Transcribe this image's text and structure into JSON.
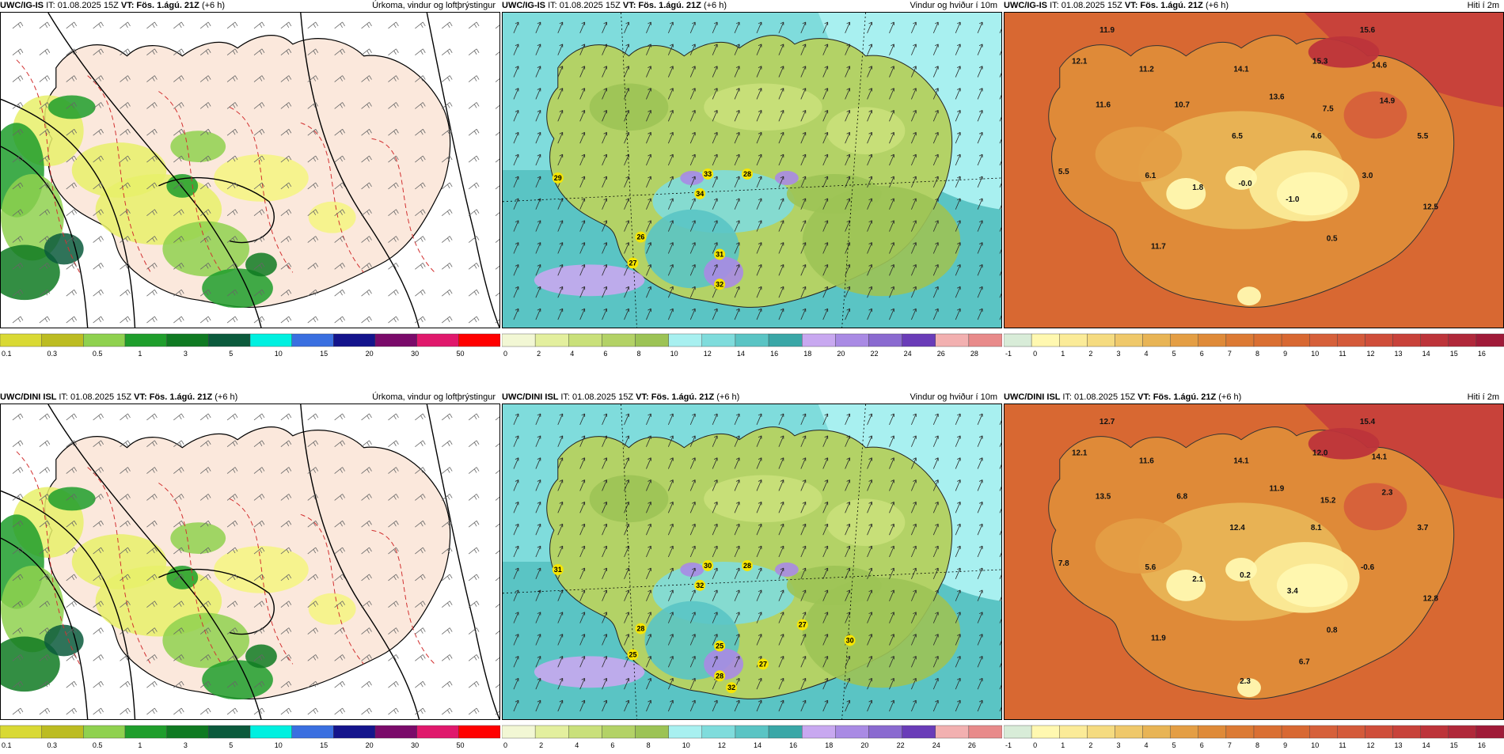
{
  "rows": [
    {
      "model": "UWC/IG-IS",
      "it": "IT: 01.08.2025 15Z",
      "vt_prefix": "VT:",
      "vt": "Fös. 1.ágú. 21Z",
      "lead": "(+6 h)",
      "panels": [
        {
          "type": "precip",
          "title": "Úrkoma, vindur og loftþrýstingur"
        },
        {
          "type": "wind",
          "title": "Vindur og hviður í 10m",
          "labels": [
            "29",
            "33",
            "28",
            "34",
            "26",
            "27",
            "31",
            "32"
          ]
        },
        {
          "type": "temp",
          "title": "Hiti í 2m",
          "labels": [
            "11.9",
            "15.6",
            "12.1",
            "11.2",
            "15.3",
            "14.6",
            "14.1",
            "13.6",
            "14.9",
            "11.6",
            "10.7",
            "7.5",
            "6.5",
            "4.6",
            "5.5",
            "5.5",
            "6.1",
            "1.8",
            "-0.0",
            "3.0",
            "-1.0",
            "12.5",
            "11.7",
            "0.5"
          ]
        }
      ]
    },
    {
      "model": "UWC/DINI ISL",
      "it": "IT: 01.08.2025 15Z",
      "vt_prefix": "VT:",
      "vt": "Fös. 1.ágú. 21Z",
      "lead": "(+6 h)",
      "panels": [
        {
          "type": "precip",
          "title": "Úrkoma, vindur og loftþrýstingur"
        },
        {
          "type": "wind",
          "title": "Vindur og hviður í 10m",
          "labels": [
            "31",
            "30",
            "28",
            "32",
            "28",
            "25",
            "25",
            "28",
            "27",
            "27",
            "30",
            "32"
          ]
        },
        {
          "type": "temp",
          "title": "Hiti í 2m",
          "labels": [
            "12.7",
            "15.4",
            "12.1",
            "11.6",
            "12.0",
            "14.1",
            "14.1",
            "11.9",
            "2.3",
            "13.5",
            "6.8",
            "15.2",
            "12.4",
            "8.1",
            "3.7",
            "7.8",
            "5.6",
            "2.1",
            "0.2",
            "-0.6",
            "3.4",
            "12.8",
            "11.9",
            "0.8",
            "6.7",
            "2.3"
          ]
        }
      ]
    }
  ],
  "colorbars": {
    "precip": {
      "ticks": [
        "0.1",
        "0.3",
        "0.5",
        "1",
        "3",
        "5",
        "10",
        "15",
        "20",
        "30",
        "50"
      ],
      "colors": [
        "#d9d934",
        "#bcbc22",
        "#8fd14f",
        "#1f9e2c",
        "#0f7a22",
        "#0b5a3c",
        "#00f0e0",
        "#3a6fe0",
        "#14148c",
        "#7a0a6a",
        "#e0186c",
        "#ff0000"
      ]
    },
    "wind_top": {
      "ticks": [
        "0",
        "2",
        "4",
        "6",
        "8",
        "10",
        "12",
        "14",
        "16",
        "18",
        "20",
        "22",
        "24",
        "26",
        "28"
      ],
      "colors": [
        "#f2f7d4",
        "#e3ef9e",
        "#c9e07a",
        "#b3d266",
        "#9cc355",
        "#a8f0f0",
        "#7fdcdc",
        "#5ac4c4",
        "#3aa7a7",
        "#c8a8f0",
        "#a98ae4",
        "#8a6ad0",
        "#6a3cb8",
        "#f2b0b0",
        "#e88a8a"
      ]
    },
    "wind_bottom": {
      "ticks": [
        "0",
        "2",
        "4",
        "6",
        "8",
        "10",
        "12",
        "14",
        "16",
        "18",
        "20",
        "22",
        "24",
        "26"
      ],
      "colors": [
        "#f2f7d4",
        "#e3ef9e",
        "#c9e07a",
        "#b3d266",
        "#9cc355",
        "#a8f0f0",
        "#7fdcdc",
        "#5ac4c4",
        "#3aa7a7",
        "#c8a8f0",
        "#a98ae4",
        "#8a6ad0",
        "#6a3cb8",
        "#f2b0b0",
        "#e88a8a"
      ]
    },
    "temp": {
      "ticks": [
        "-1",
        "0",
        "1",
        "2",
        "3",
        "4",
        "5",
        "6",
        "7",
        "8",
        "9",
        "10",
        "11",
        "12",
        "13",
        "14",
        "15",
        "16"
      ],
      "colors": [
        "#d8ecd8",
        "#fff8b0",
        "#fbeb98",
        "#f5db80",
        "#efc86a",
        "#e8b455",
        "#e49e44",
        "#df8a38",
        "#dc7a34",
        "#da6f32",
        "#d86832",
        "#d6603a",
        "#d45a3a",
        "#cf4e3a",
        "#c8423a",
        "#bd343a",
        "#b0283a",
        "#a01a38"
      ]
    }
  }
}
